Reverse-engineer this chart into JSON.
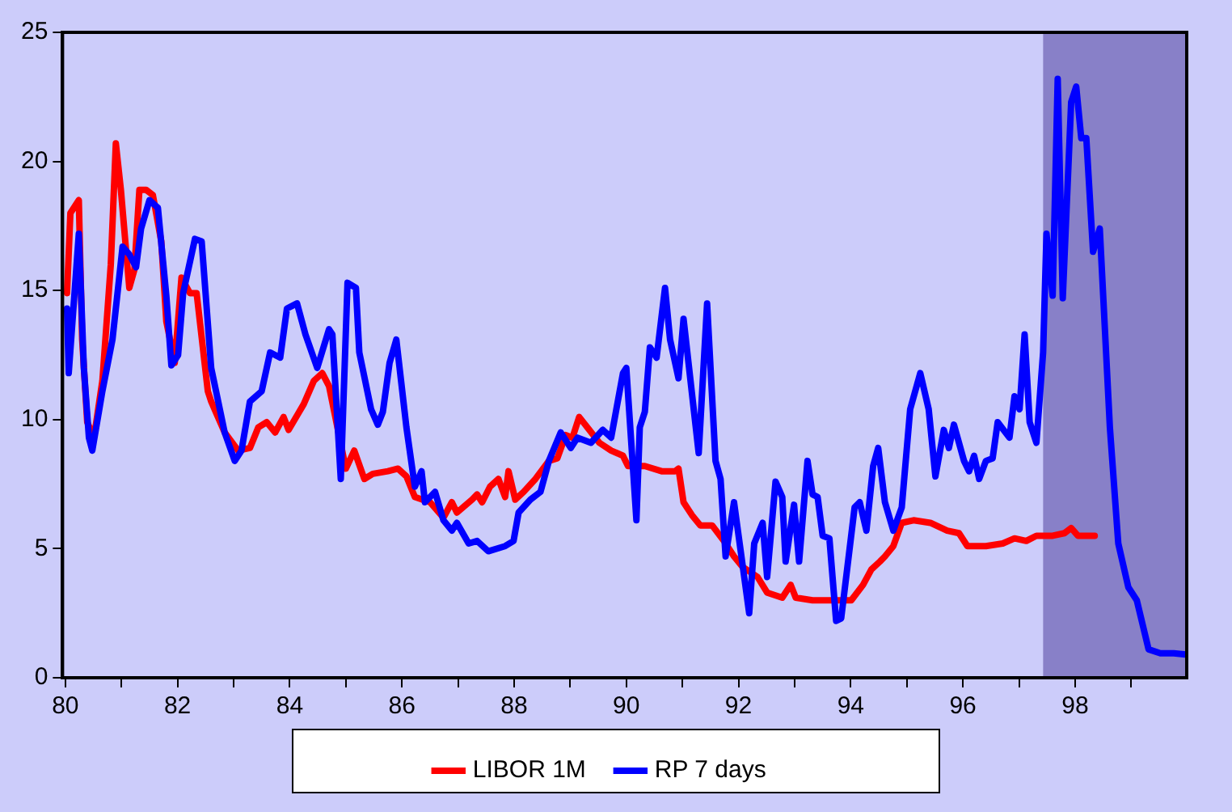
{
  "chart_data": {
    "type": "line",
    "xlim": [
      1979.95,
      1999.99
    ],
    "xticks": [
      {
        "value": 1980,
        "label": "80"
      },
      {
        "value": 1981,
        "label": null
      },
      {
        "value": 1982,
        "label": "82"
      },
      {
        "value": 1983,
        "label": null
      },
      {
        "value": 1984,
        "label": "84"
      },
      {
        "value": 1985,
        "label": null
      },
      {
        "value": 1986,
        "label": "86"
      },
      {
        "value": 1987,
        "label": null
      },
      {
        "value": 1988,
        "label": "88"
      },
      {
        "value": 1989,
        "label": null
      },
      {
        "value": 1990,
        "label": "90"
      },
      {
        "value": 1991,
        "label": null
      },
      {
        "value": 1992,
        "label": "92"
      },
      {
        "value": 1993,
        "label": null
      },
      {
        "value": 1994,
        "label": "94"
      },
      {
        "value": 1995,
        "label": null
      },
      {
        "value": 1996,
        "label": "96"
      },
      {
        "value": 1997,
        "label": null
      },
      {
        "value": 1998,
        "label": "98"
      },
      {
        "value": 1999,
        "label": null
      }
    ],
    "ylim": [
      0,
      25
    ],
    "yticks": [
      0,
      5,
      10,
      15,
      20,
      25
    ],
    "grid": false,
    "legend": "bottom",
    "marker": "none",
    "line_style": "solid",
    "bands": [
      {
        "axis": "x",
        "from": 1997.43,
        "to": 1999.99,
        "color": "#8880c8"
      }
    ],
    "series": [
      {
        "name": "LIBOR 1M",
        "color": "#ff0000",
        "x": [
          1980.03,
          1980.09,
          1980.24,
          1980.3,
          1980.39,
          1980.51,
          1980.66,
          1980.81,
          1980.9,
          1980.99,
          1981.14,
          1981.23,
          1981.32,
          1981.44,
          1981.56,
          1981.71,
          1981.8,
          1981.95,
          1982.07,
          1982.22,
          1982.34,
          1982.54,
          1982.6,
          1982.84,
          1983.08,
          1983.29,
          1983.44,
          1983.59,
          1983.74,
          1983.89,
          1983.98,
          1984.25,
          1984.43,
          1984.58,
          1984.7,
          1984.85,
          1985.0,
          1985.15,
          1985.33,
          1985.48,
          1985.75,
          1985.93,
          1986.08,
          1986.23,
          1986.5,
          1986.74,
          1986.89,
          1986.98,
          1987.25,
          1987.34,
          1987.43,
          1987.57,
          1987.72,
          1987.84,
          1987.9,
          1988.02,
          1988.17,
          1988.38,
          1988.62,
          1988.77,
          1988.92,
          1989.04,
          1989.16,
          1989.34,
          1989.52,
          1989.73,
          1989.94,
          1990.03,
          1990.33,
          1990.63,
          1990.87,
          1990.93,
          1991.02,
          1991.17,
          1991.32,
          1991.53,
          1991.74,
          1991.92,
          1992.07,
          1992.34,
          1992.51,
          1992.78,
          1992.93,
          1993.02,
          1993.32,
          1993.83,
          1994.01,
          1994.22,
          1994.37,
          1994.52,
          1994.61,
          1994.76,
          1994.91,
          1995.12,
          1995.42,
          1995.72,
          1995.93,
          1996.08,
          1996.41,
          1996.71,
          1996.92,
          1997.13,
          1997.31,
          1997.6,
          1997.81,
          1997.93,
          1998.05,
          1998.35
        ],
        "values": [
          14.9,
          18.0,
          18.5,
          13.1,
          9.9,
          9.3,
          11.5,
          16.0,
          20.7,
          18.9,
          15.1,
          15.8,
          18.9,
          18.9,
          18.7,
          16.9,
          13.8,
          12.2,
          15.5,
          14.9,
          14.9,
          11.1,
          10.7,
          9.5,
          8.8,
          8.9,
          9.7,
          9.9,
          9.5,
          10.1,
          9.6,
          10.6,
          11.5,
          11.8,
          11.3,
          9.7,
          8.1,
          8.8,
          7.7,
          7.9,
          8.0,
          8.1,
          7.8,
          7.0,
          6.8,
          6.2,
          6.8,
          6.4,
          6.9,
          7.1,
          6.8,
          7.4,
          7.7,
          7.0,
          8.0,
          6.9,
          7.2,
          7.7,
          8.4,
          8.5,
          9.4,
          9.3,
          10.1,
          9.6,
          9.1,
          8.8,
          8.6,
          8.2,
          8.2,
          8.0,
          8.0,
          8.1,
          6.8,
          6.3,
          5.9,
          5.9,
          5.3,
          4.7,
          4.3,
          3.9,
          3.3,
          3.1,
          3.6,
          3.1,
          3.0,
          3.0,
          3.0,
          3.6,
          4.2,
          4.5,
          4.7,
          5.1,
          6.0,
          6.1,
          6.0,
          5.7,
          5.6,
          5.1,
          5.1,
          5.2,
          5.4,
          5.3,
          5.5,
          5.5,
          5.6,
          5.8,
          5.5,
          5.5
        ]
      },
      {
        "name": "RP 7 days",
        "color": "#0000ff",
        "x": [
          1980.03,
          1980.06,
          1980.24,
          1980.33,
          1980.42,
          1980.48,
          1980.66,
          1980.84,
          1981.02,
          1981.14,
          1981.26,
          1981.35,
          1981.5,
          1981.65,
          1981.8,
          1981.89,
          1982.01,
          1982.1,
          1982.31,
          1982.43,
          1982.6,
          1982.84,
          1983.02,
          1983.14,
          1983.29,
          1983.5,
          1983.65,
          1983.83,
          1983.95,
          1984.13,
          1984.28,
          1984.49,
          1984.7,
          1984.76,
          1984.91,
          1985.03,
          1985.18,
          1985.24,
          1985.45,
          1985.57,
          1985.66,
          1985.78,
          1985.9,
          1986.08,
          1986.23,
          1986.35,
          1986.41,
          1986.59,
          1986.74,
          1986.89,
          1986.98,
          1987.19,
          1987.34,
          1987.54,
          1987.84,
          1987.99,
          1988.08,
          1988.29,
          1988.47,
          1988.62,
          1988.83,
          1989.01,
          1989.13,
          1989.37,
          1989.58,
          1989.73,
          1989.94,
          1990.0,
          1990.18,
          1990.24,
          1990.33,
          1990.42,
          1990.54,
          1990.69,
          1990.78,
          1990.93,
          1991.02,
          1991.29,
          1991.44,
          1991.59,
          1991.68,
          1991.77,
          1991.92,
          1992.19,
          1992.28,
          1992.43,
          1992.51,
          1992.66,
          1992.78,
          1992.84,
          1992.99,
          1993.08,
          1993.23,
          1993.32,
          1993.41,
          1993.5,
          1993.62,
          1993.74,
          1993.83,
          1994.07,
          1994.16,
          1994.28,
          1994.4,
          1994.49,
          1994.61,
          1994.76,
          1994.91,
          1995.06,
          1995.24,
          1995.39,
          1995.51,
          1995.66,
          1995.75,
          1995.84,
          1996.02,
          1996.11,
          1996.2,
          1996.29,
          1996.41,
          1996.53,
          1996.62,
          1996.83,
          1996.92,
          1997.01,
          1997.1,
          1997.19,
          1997.31,
          1997.43,
          1997.49,
          1997.6,
          1997.69,
          1997.78,
          1997.93,
          1998.02,
          1998.11,
          1998.2,
          1998.32,
          1998.44,
          1998.62,
          1998.77,
          1998.95,
          1999.1,
          1999.31,
          1999.52,
          1999.76,
          1999.97
        ],
        "values": [
          14.3,
          11.8,
          17.2,
          12.0,
          9.3,
          8.8,
          11.1,
          13.1,
          16.7,
          16.4,
          15.9,
          17.4,
          18.5,
          18.2,
          14.8,
          12.1,
          12.5,
          14.9,
          17.0,
          16.9,
          12.0,
          9.5,
          8.4,
          8.8,
          10.7,
          11.1,
          12.6,
          12.4,
          14.3,
          14.5,
          13.3,
          12.0,
          13.5,
          13.3,
          7.7,
          15.3,
          15.1,
          12.6,
          10.4,
          9.8,
          10.3,
          12.2,
          13.1,
          9.7,
          7.4,
          8.0,
          6.8,
          7.2,
          6.1,
          5.7,
          6.0,
          5.2,
          5.3,
          4.9,
          5.1,
          5.3,
          6.4,
          6.9,
          7.2,
          8.4,
          9.5,
          8.9,
          9.3,
          9.1,
          9.6,
          9.3,
          11.8,
          12.0,
          6.1,
          9.7,
          10.3,
          12.8,
          12.4,
          15.1,
          13.1,
          11.6,
          13.9,
          8.7,
          14.5,
          8.4,
          7.7,
          4.7,
          6.8,
          2.5,
          5.2,
          6.0,
          3.9,
          7.6,
          7.0,
          4.5,
          6.7,
          4.5,
          8.4,
          7.1,
          7.0,
          5.5,
          5.4,
          2.2,
          2.3,
          6.6,
          6.8,
          5.7,
          8.2,
          8.9,
          6.8,
          5.7,
          6.6,
          10.4,
          11.8,
          10.4,
          7.8,
          9.6,
          8.9,
          9.8,
          8.4,
          8.0,
          8.6,
          7.7,
          8.4,
          8.5,
          9.9,
          9.3,
          10.9,
          10.4,
          13.3,
          9.9,
          9.1,
          12.6,
          17.2,
          14.8,
          23.2,
          14.7,
          22.3,
          22.9,
          20.9,
          20.9,
          16.5,
          17.4,
          9.7,
          5.2,
          3.5,
          3.0,
          1.1,
          0.95,
          0.95,
          0.9
        ]
      }
    ]
  }
}
